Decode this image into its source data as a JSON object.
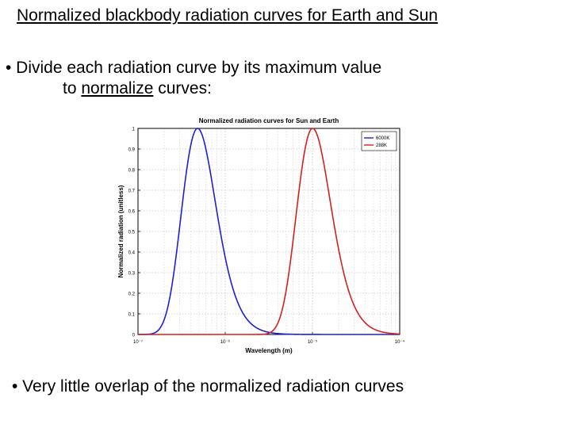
{
  "slide": {
    "title": "Normalized blackbody radiation curves for Earth and Sun",
    "bullet1_line1": "• Divide each radiation curve by its maximum value",
    "bullet1_pre": "to ",
    "bullet1_emph": "normalize",
    "bullet1_post": " curves:",
    "bullet2": "• Very little overlap of the normalized radiation curves"
  },
  "chart_data": {
    "type": "line",
    "title": "Normalized radiation curves for Sun and Earth",
    "xlabel": "Wavelength (m)",
    "ylabel": "Normalized radiation (unitless)",
    "xscale": "log",
    "xlim_exp": [
      -7,
      -4
    ],
    "ylim": [
      0,
      1
    ],
    "x_tick_labels": [
      "10⁻⁷",
      "10⁻⁶",
      "10⁻⁵",
      "10⁻⁴"
    ],
    "y_tick_labels": [
      "0",
      "0.1",
      "0.2",
      "0.3",
      "0.4",
      "0.5",
      "0.6",
      "0.7",
      "0.8",
      "0.9",
      "1"
    ],
    "grid": true,
    "legend_position": "top-right",
    "series": [
      {
        "name": "6000K",
        "temperature_K": 6000,
        "color": "#1f1fd6",
        "peak_wavelength_m": 4.8e-07
      },
      {
        "name": "288K",
        "temperature_K": 288,
        "color": "#d61f1f",
        "peak_wavelength_m": 1e-05
      }
    ]
  }
}
